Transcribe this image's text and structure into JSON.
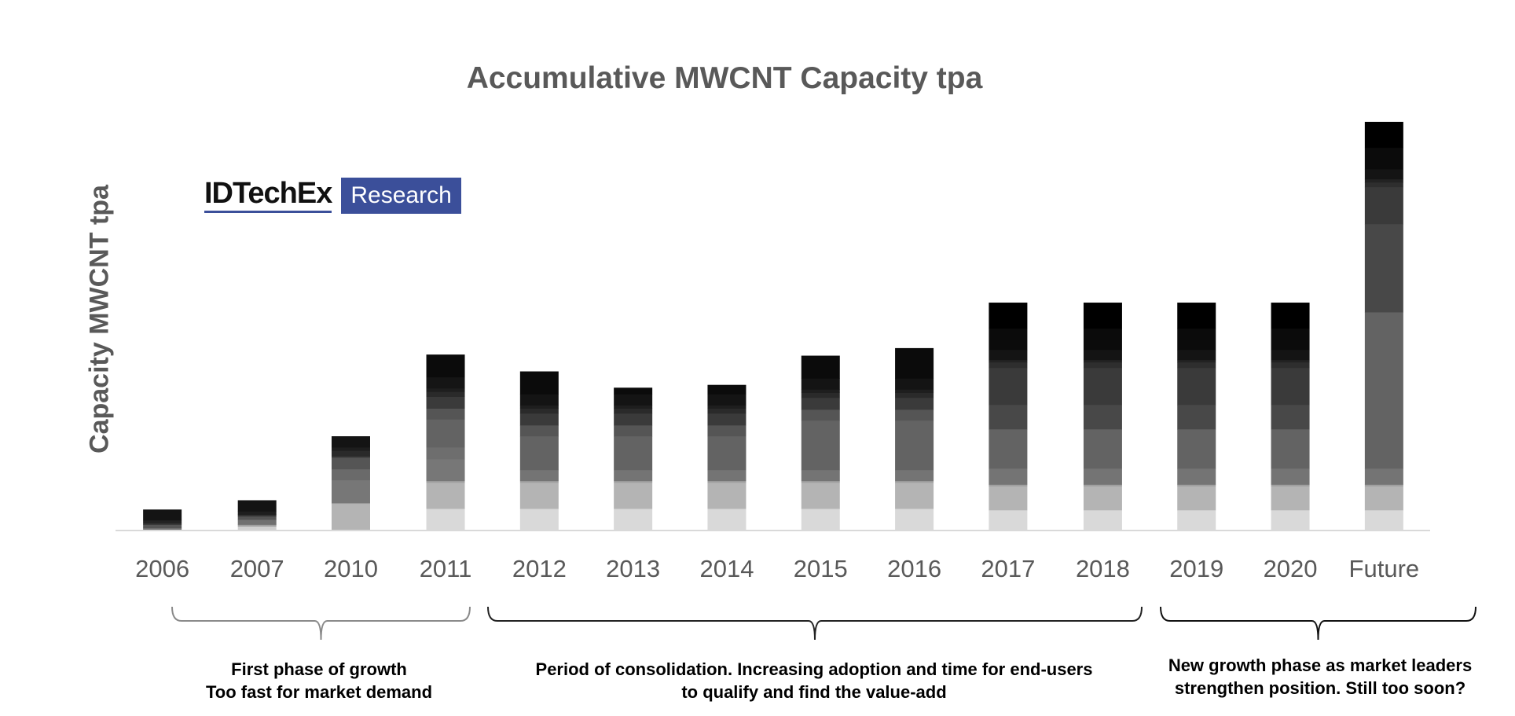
{
  "chart_data": {
    "type": "bar",
    "stacked": true,
    "title": "Accumulative MWCNT Capacity tpa",
    "xlabel": "",
    "ylabel": "Capacity MWCNT tpa",
    "grid": false,
    "legend": "none",
    "categories": [
      "2006",
      "2007",
      "2010",
      "2011",
      "2012",
      "2013",
      "2014",
      "2015",
      "2016",
      "2017",
      "2018",
      "2019",
      "2020",
      "Future"
    ],
    "bars": [
      {
        "segments": [
          [
            6,
            "#777777"
          ],
          [
            12,
            "#555555"
          ],
          [
            6,
            "#333333"
          ],
          [
            10,
            "#222222"
          ],
          [
            38,
            "#141414"
          ]
        ]
      },
      {
        "segments": [
          [
            12,
            "#d0d0d0"
          ],
          [
            6,
            "#a0a0a0"
          ],
          [
            18,
            "#707070"
          ],
          [
            12,
            "#555555"
          ],
          [
            6,
            "#333333"
          ],
          [
            12,
            "#1e1e1e"
          ],
          [
            39,
            "#141414"
          ]
        ]
      },
      {
        "segments": [
          [
            93,
            "#b4b4b4"
          ],
          [
            3,
            "#999999"
          ],
          [
            81,
            "#777777"
          ],
          [
            39,
            "#6a6a6a"
          ],
          [
            42,
            "#555555"
          ],
          [
            6,
            "#333333"
          ],
          [
            18,
            "#2a2a2a"
          ],
          [
            12,
            "#1e1e1e"
          ],
          [
            39,
            "#141414"
          ]
        ]
      },
      {
        "segments": [
          [
            75,
            "#d9d9d9"
          ],
          [
            93,
            "#b4b4b4"
          ],
          [
            6,
            "#a0a0a0"
          ],
          [
            78,
            "#777777"
          ],
          [
            42,
            "#6e6e6e"
          ],
          [
            99,
            "#636363"
          ],
          [
            39,
            "#555555"
          ],
          [
            42,
            "#3a3a3a"
          ],
          [
            18,
            "#2a2a2a"
          ],
          [
            12,
            "#1e1e1e"
          ],
          [
            39,
            "#151515"
          ],
          [
            81,
            "#0b0b0b"
          ]
        ]
      },
      {
        "segments": [
          [
            75,
            "#d9d9d9"
          ],
          [
            93,
            "#b4b4b4"
          ],
          [
            6,
            "#a0a0a0"
          ],
          [
            39,
            "#747474"
          ],
          [
            120,
            "#636363"
          ],
          [
            39,
            "#555555"
          ],
          [
            42,
            "#3a3a3a"
          ],
          [
            18,
            "#2a2a2a"
          ],
          [
            12,
            "#1e1e1e"
          ],
          [
            39,
            "#141414"
          ],
          [
            81,
            "#0b0b0b"
          ]
        ]
      },
      {
        "segments": [
          [
            75,
            "#d9d9d9"
          ],
          [
            93,
            "#b4b4b4"
          ],
          [
            6,
            "#a0a0a0"
          ],
          [
            39,
            "#747474"
          ],
          [
            120,
            "#636363"
          ],
          [
            39,
            "#555555"
          ],
          [
            42,
            "#3a3a3a"
          ],
          [
            18,
            "#2a2a2a"
          ],
          [
            12,
            "#1e1e1e"
          ],
          [
            39,
            "#141414"
          ],
          [
            23,
            "#0b0b0b"
          ]
        ]
      },
      {
        "segments": [
          [
            75,
            "#d9d9d9"
          ],
          [
            93,
            "#b4b4b4"
          ],
          [
            6,
            "#a0a0a0"
          ],
          [
            39,
            "#747474"
          ],
          [
            120,
            "#636363"
          ],
          [
            39,
            "#555555"
          ],
          [
            42,
            "#3a3a3a"
          ],
          [
            18,
            "#2a2a2a"
          ],
          [
            12,
            "#1e1e1e"
          ],
          [
            39,
            "#141414"
          ],
          [
            33,
            "#0b0b0b"
          ]
        ]
      },
      {
        "segments": [
          [
            75,
            "#d9d9d9"
          ],
          [
            93,
            "#b4b4b4"
          ],
          [
            6,
            "#a0a0a0"
          ],
          [
            39,
            "#747474"
          ],
          [
            176,
            "#636363"
          ],
          [
            39,
            "#555555"
          ],
          [
            42,
            "#3a3a3a"
          ],
          [
            18,
            "#2a2a2a"
          ],
          [
            12,
            "#1e1e1e"
          ],
          [
            39,
            "#141414"
          ],
          [
            81,
            "#0b0b0b"
          ]
        ]
      },
      {
        "segments": [
          [
            75,
            "#d9d9d9"
          ],
          [
            93,
            "#b4b4b4"
          ],
          [
            6,
            "#a0a0a0"
          ],
          [
            39,
            "#747474"
          ],
          [
            176,
            "#636363"
          ],
          [
            39,
            "#555555"
          ],
          [
            42,
            "#3a3a3a"
          ],
          [
            18,
            "#2a2a2a"
          ],
          [
            12,
            "#1e1e1e"
          ],
          [
            39,
            "#141414"
          ],
          [
            108,
            "#0b0b0b"
          ]
        ]
      },
      {
        "segments": [
          [
            70,
            "#d9d9d9"
          ],
          [
            85,
            "#b4b4b4"
          ],
          [
            6,
            "#a0a0a0"
          ],
          [
            57,
            "#747474"
          ],
          [
            140,
            "#636363"
          ],
          [
            87,
            "#484848"
          ],
          [
            132,
            "#3a3a3a"
          ],
          [
            19,
            "#2e2e2e"
          ],
          [
            9,
            "#222222"
          ],
          [
            36,
            "#141414"
          ],
          [
            76,
            "#0b0b0b"
          ],
          [
            92,
            "#000000"
          ]
        ]
      },
      {
        "segments": [
          [
            70,
            "#d9d9d9"
          ],
          [
            85,
            "#b4b4b4"
          ],
          [
            6,
            "#a0a0a0"
          ],
          [
            57,
            "#747474"
          ],
          [
            140,
            "#636363"
          ],
          [
            87,
            "#484848"
          ],
          [
            132,
            "#3a3a3a"
          ],
          [
            19,
            "#2e2e2e"
          ],
          [
            9,
            "#222222"
          ],
          [
            36,
            "#141414"
          ],
          [
            76,
            "#0b0b0b"
          ],
          [
            92,
            "#000000"
          ]
        ]
      },
      {
        "segments": [
          [
            70,
            "#d9d9d9"
          ],
          [
            85,
            "#b4b4b4"
          ],
          [
            6,
            "#a0a0a0"
          ],
          [
            57,
            "#747474"
          ],
          [
            140,
            "#636363"
          ],
          [
            87,
            "#484848"
          ],
          [
            132,
            "#3a3a3a"
          ],
          [
            19,
            "#2e2e2e"
          ],
          [
            9,
            "#222222"
          ],
          [
            36,
            "#141414"
          ],
          [
            76,
            "#0b0b0b"
          ],
          [
            92,
            "#000000"
          ]
        ]
      },
      {
        "segments": [
          [
            70,
            "#d9d9d9"
          ],
          [
            85,
            "#b4b4b4"
          ],
          [
            6,
            "#a0a0a0"
          ],
          [
            57,
            "#747474"
          ],
          [
            140,
            "#636363"
          ],
          [
            87,
            "#484848"
          ],
          [
            132,
            "#3a3a3a"
          ],
          [
            19,
            "#2e2e2e"
          ],
          [
            9,
            "#222222"
          ],
          [
            36,
            "#141414"
          ],
          [
            76,
            "#0b0b0b"
          ],
          [
            92,
            "#000000"
          ]
        ]
      },
      {
        "segments": [
          [
            70,
            "#d9d9d9"
          ],
          [
            85,
            "#b4b4b4"
          ],
          [
            6,
            "#a0a0a0"
          ],
          [
            57,
            "#747474"
          ],
          [
            557,
            "#636363"
          ],
          [
            314,
            "#484848"
          ],
          [
            132,
            "#3a3a3a"
          ],
          [
            16,
            "#2e2e2e"
          ],
          [
            12,
            "#222222"
          ],
          [
            36,
            "#141414"
          ],
          [
            76,
            "#0b0b0b"
          ],
          [
            92,
            "#000000"
          ]
        ]
      }
    ],
    "ylim": [
      0,
      1453
    ],
    "annotations": [
      {
        "range": [
          "2006",
          "2011"
        ],
        "lines": [
          "First phase of growth",
          "Too fast for market demand"
        ]
      },
      {
        "range": [
          "2012",
          "2018"
        ],
        "lines": [
          "Period of consolidation. Increasing adoption and time for end-users",
          "to qualify and find the value-add"
        ]
      },
      {
        "range": [
          "2019",
          "Future"
        ],
        "lines": [
          "New growth phase as market leaders",
          "strengthen position. Still too soon?"
        ]
      }
    ]
  },
  "logo": {
    "name": "IDTechEx",
    "tag": "Research",
    "brand_color": "#3b4f9a"
  }
}
